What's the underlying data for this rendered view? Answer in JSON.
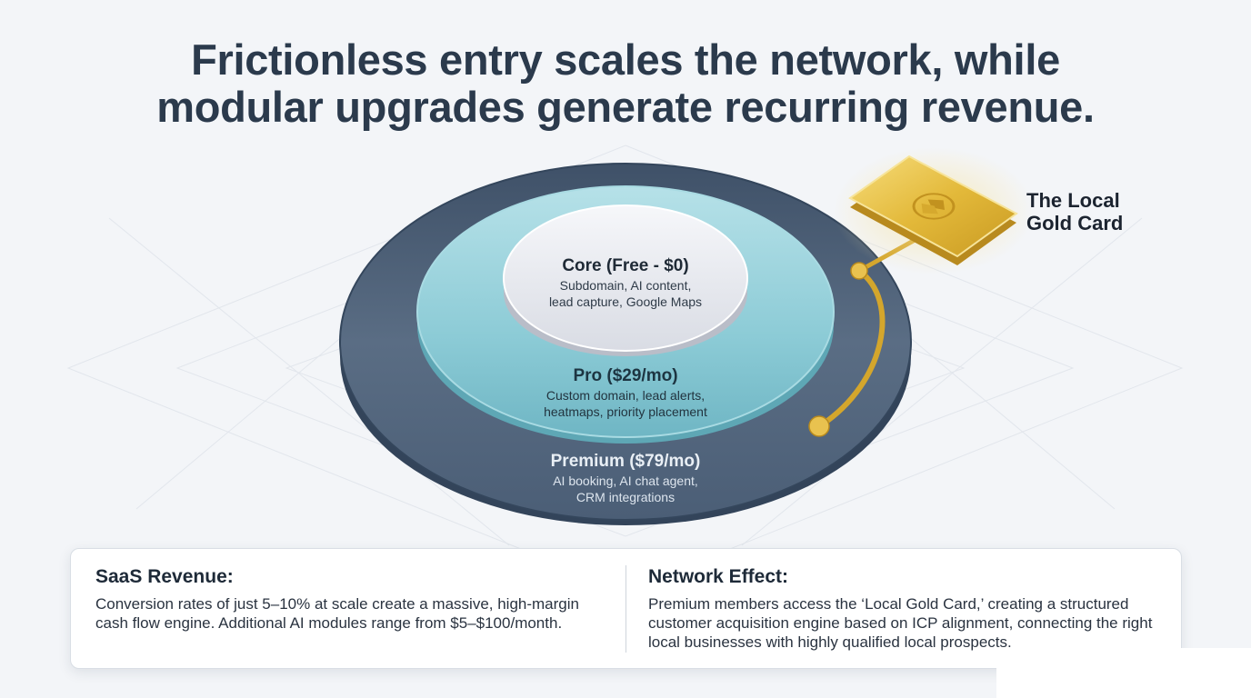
{
  "headline": {
    "line1": "Frictionless entry scales the network, while",
    "line2": "modular upgrades generate recurring revenue."
  },
  "tiers": {
    "core": {
      "title": "Core (Free - $0)",
      "desc_line1": "Subdomain, AI content,",
      "desc_line2": "lead capture, Google Maps"
    },
    "pro": {
      "title": "Pro ($29/mo)",
      "desc_line1": "Custom domain, lead alerts,",
      "desc_line2": "heatmaps, priority placement"
    },
    "premium": {
      "title": "Premium ($79/mo)",
      "desc_line1": "AI booking, AI chat agent,",
      "desc_line2": "CRM integrations"
    }
  },
  "gold_card": {
    "label_line1": "The Local",
    "label_line2": "Gold Card"
  },
  "bottom": {
    "left": {
      "title": "SaaS Revenue:",
      "text": "Conversion rates of just 5–10% at scale create a massive, high-margin cash flow engine. Additional AI modules range from $5–$100/month."
    },
    "right": {
      "title": "Network Effect:",
      "text": "Premium members access the ‘Local Gold Card,’ creating a structured customer acquisition engine based on ICP alignment, connecting the right local businesses with highly qualified local prospects."
    }
  },
  "colors": {
    "headline": "#2b3a4c",
    "premium_ring": "#4e6178",
    "pro_ring": "#7ec3cf",
    "core_disc": "#e4e6ec",
    "gold": "#e2b93b"
  },
  "icons": [
    "gold-card-emblem-icon"
  ]
}
